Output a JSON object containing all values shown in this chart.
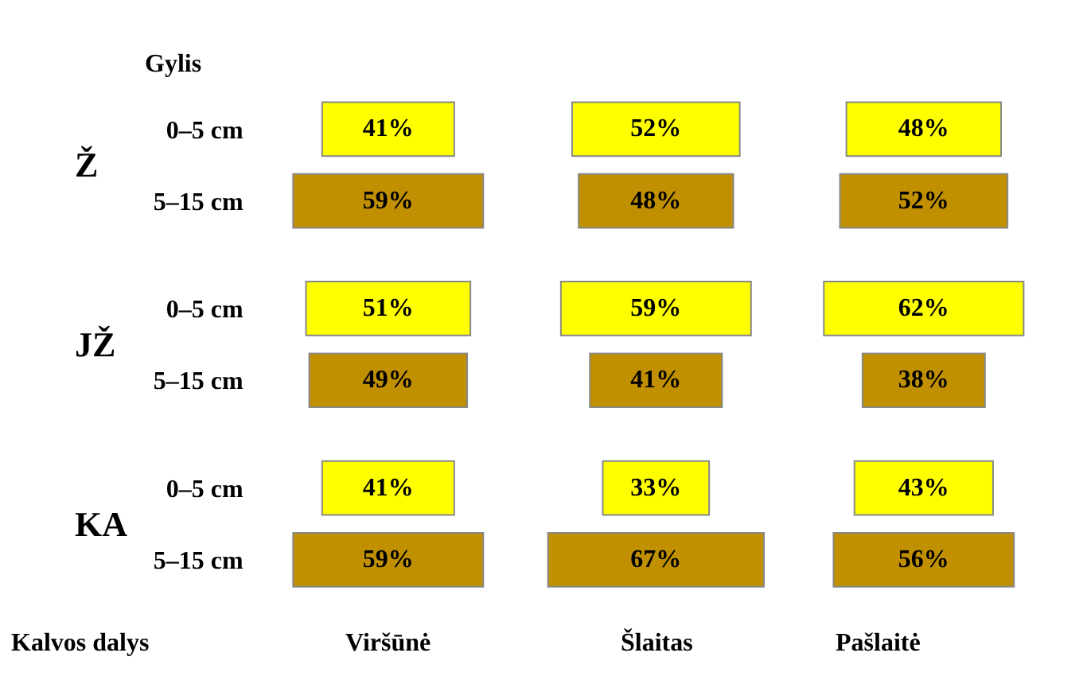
{
  "chart_data": [
    {
      "type": "other",
      "ylabel": "Gylis",
      "xlabel": "Viršūnė",
      "categories": [
        "0–5 cm",
        "5–15 cm",
        "0–5 cm",
        "5–15 cm",
        "0–5 cm",
        "5–15 cm"
      ],
      "values": [
        41,
        59,
        51,
        49,
        41,
        59
      ],
      "value_labels": [
        "41%",
        "59%",
        "51%",
        "49%",
        "41%",
        "59%"
      ],
      "colors": [
        "#ffff00",
        "#c09000",
        "#ffff00",
        "#c09000",
        "#ffff00",
        "#c09000"
      ],
      "annotations": [
        "Ž",
        "JŽ",
        "KA",
        "Kalvos dalys"
      ]
    },
    {
      "type": "other",
      "xlabel": "Šlaitas",
      "categories": [
        null,
        null,
        null,
        null,
        null,
        null
      ],
      "values": [
        52,
        48,
        59,
        41,
        33,
        67
      ],
      "value_labels": [
        "52%",
        "48%",
        "59%",
        "41%",
        "33%",
        "67%"
      ],
      "colors": [
        "#ffff00",
        "#c09000",
        "#ffff00",
        "#c09000",
        "#ffff00",
        "#c09000"
      ]
    },
    {
      "type": "other",
      "xlabel": "Pašlaitė",
      "categories": [
        null,
        null,
        null,
        null,
        null,
        null
      ],
      "values": [
        48,
        52,
        62,
        38,
        43,
        56
      ],
      "value_labels": [
        "48%",
        "52%",
        "62%",
        "38%",
        "43%",
        "56%"
      ],
      "colors": [
        "#ffff00",
        "#c09000",
        "#ffff00",
        "#c09000",
        "#ffff00",
        "#c09000"
      ]
    }
  ]
}
